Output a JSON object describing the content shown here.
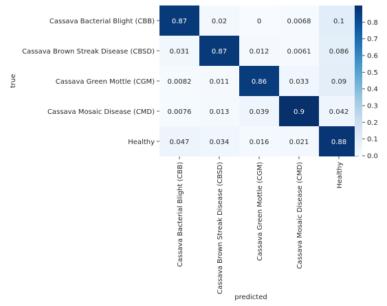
{
  "chart_data": {
    "type": "heatmap",
    "title": "",
    "xlabel": "predicted",
    "ylabel": "true",
    "x_categories": [
      "Cassava Bacterial Blight (CBB)",
      "Cassava Brown Streak Disease (CBSD)",
      "Cassava Green Mottle (CGM)",
      "Cassava Mosaic Disease (CMD)",
      "Healthy"
    ],
    "y_categories": [
      "Cassava Bacterial Blight (CBB)",
      "Cassava Brown Streak Disease (CBSD)",
      "Cassava Green Mottle (CGM)",
      "Cassava Mosaic Disease (CMD)",
      "Healthy"
    ],
    "values": [
      [
        0.87,
        0.02,
        0,
        0.0068,
        0.1
      ],
      [
        0.031,
        0.87,
        0.012,
        0.0061,
        0.086
      ],
      [
        0.0082,
        0.011,
        0.86,
        0.033,
        0.09
      ],
      [
        0.0076,
        0.013,
        0.039,
        0.9,
        0.042
      ],
      [
        0.047,
        0.034,
        0.016,
        0.021,
        0.88
      ]
    ],
    "annotations": [
      [
        "0.87",
        "0.02",
        "0",
        "0.0068",
        "0.1"
      ],
      [
        "0.031",
        "0.87",
        "0.012",
        "0.0061",
        "0.086"
      ],
      [
        "0.0082",
        "0.011",
        "0.86",
        "0.033",
        "0.09"
      ],
      [
        "0.0076",
        "0.013",
        "0.039",
        "0.9",
        "0.042"
      ],
      [
        "0.047",
        "0.034",
        "0.016",
        "0.021",
        "0.88"
      ]
    ],
    "colormap": "Blues",
    "vmin": 0,
    "vmax": 0.9,
    "colorbar_ticks": [
      "0.0",
      "0.1",
      "0.2",
      "0.3",
      "0.4",
      "0.5",
      "0.6",
      "0.7",
      "0.8"
    ],
    "colors": {
      "low": "#f7fbff",
      "high": "#08306b",
      "text_dark": "#262626",
      "text_light": "#ffffff"
    }
  }
}
